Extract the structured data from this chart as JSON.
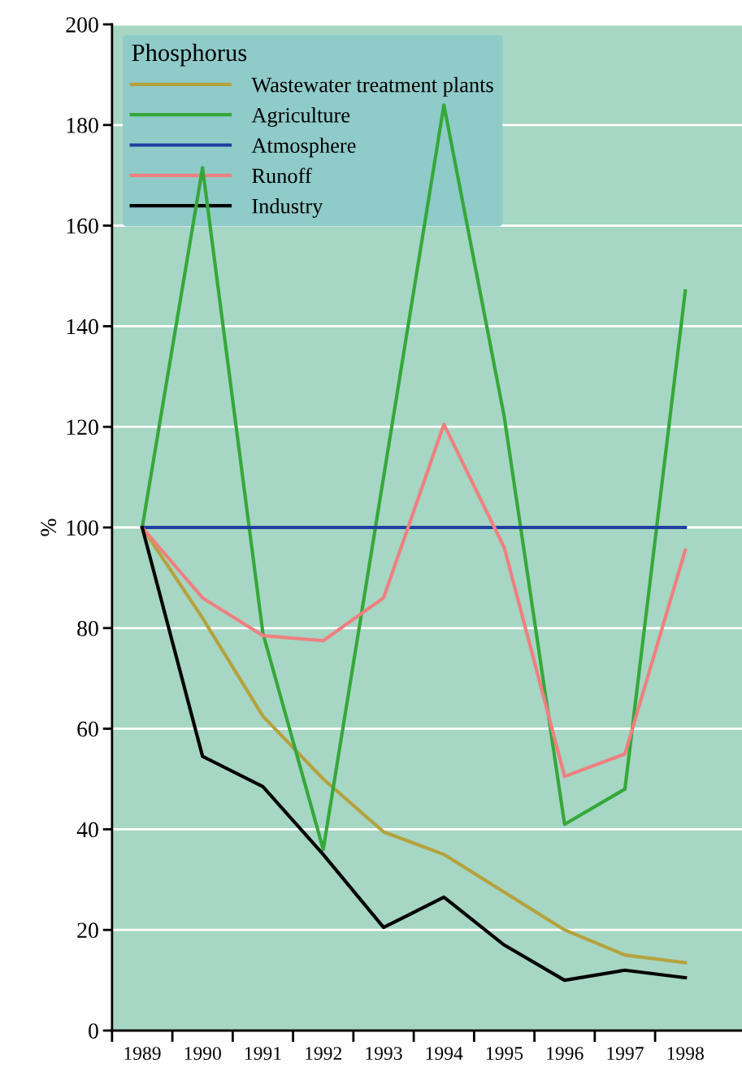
{
  "chart_data": {
    "type": "line",
    "ylabel": "%",
    "legend_title": "Phosphorus",
    "legend": "top left",
    "grid": "y",
    "categories": [
      "1989",
      "1990",
      "1991",
      "1992",
      "1993",
      "1994",
      "1995",
      "1996",
      "1997",
      "1998"
    ],
    "ylim": [
      0,
      200
    ],
    "yticks": [
      0,
      20,
      40,
      60,
      80,
      100,
      120,
      140,
      160,
      180,
      200
    ],
    "series": [
      {
        "name": "Wastewater treatment plants",
        "color": "#b5a23c",
        "values": [
          100,
          82,
          62.5,
          50,
          39.5,
          35,
          27.5,
          20,
          15,
          13.5
        ]
      },
      {
        "name": "Agriculture",
        "color": "#35a83a",
        "values": [
          100,
          171.5,
          79,
          36,
          110,
          184,
          122,
          41,
          48,
          147
        ]
      },
      {
        "name": "Atmosphere",
        "color": "#1f3f9f",
        "values": [
          100,
          100,
          100,
          100,
          100,
          100,
          100,
          100,
          100,
          100
        ]
      },
      {
        "name": "Runoff",
        "color": "#f07f7f",
        "values": [
          100,
          86,
          78.5,
          77.5,
          86,
          120.5,
          96,
          50.5,
          55,
          95.5
        ]
      },
      {
        "name": "Industry",
        "color": "#000000",
        "values": [
          100,
          54.5,
          48.5,
          35,
          20.5,
          26.5,
          17,
          10,
          12,
          10.5
        ]
      }
    ]
  }
}
